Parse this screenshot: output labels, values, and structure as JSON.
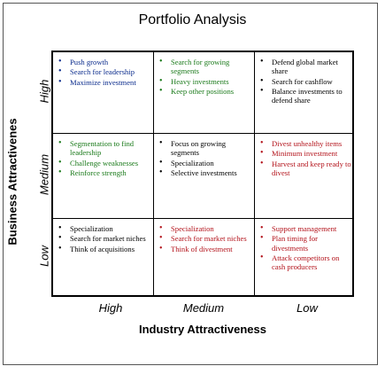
{
  "title": "Portfolio Analysis",
  "y_axis_label": "Business Attractivenes",
  "x_axis_label": "Industry Attractiveness",
  "row_labels": [
    "High",
    "Medium",
    "Low"
  ],
  "column_labels": [
    "High",
    "Medium",
    "Low"
  ],
  "colors": {
    "blue": "#0a2b8c",
    "green": "#1a7a1a",
    "black": "#000000",
    "red": "#b3131b"
  },
  "cells": [
    [
      {
        "color": "blue",
        "items": [
          "Push growth",
          "Search for leadership",
          "Maximize investment"
        ]
      },
      {
        "color": "green",
        "items": [
          "Search for growing segments",
          "Heavy investments",
          "Keep other positions"
        ]
      },
      {
        "color": "black",
        "items": [
          "Defend global market share",
          "Search for cashflow",
          "Balance investments to defend share"
        ]
      }
    ],
    [
      {
        "color": "green",
        "items": [
          "Segmentation to find leadership",
          "Challenge weaknesses",
          "Reinforce strength"
        ]
      },
      {
        "color": "black",
        "items": [
          "Focus on growing segments",
          "Specialization",
          "Selective investments"
        ]
      },
      {
        "color": "red",
        "items": [
          "Divest unhealthy items",
          "Minimum investment",
          "Harvest and keep ready to divest"
        ]
      }
    ],
    [
      {
        "color": "black",
        "items": [
          "Specialization",
          "Search for market niches",
          "Think of acquisitions"
        ]
      },
      {
        "color": "red",
        "items": [
          "Specialization",
          "Search for market niches",
          "Think of divestment"
        ]
      },
      {
        "color": "red",
        "items": [
          "Support management",
          "Plan timing for divestments",
          "Attack competitors on cash producers"
        ]
      }
    ]
  ]
}
